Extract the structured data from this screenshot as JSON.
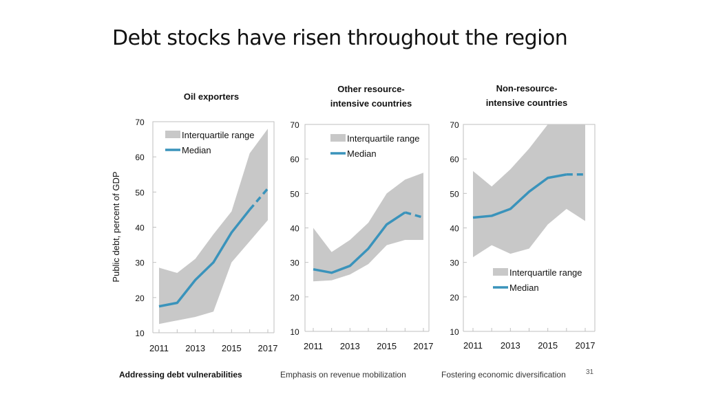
{
  "slide": {
    "title": "Debt stocks have risen throughout the region",
    "page_number": "31"
  },
  "footer": {
    "items": [
      {
        "label": "Addressing debt vulnerabilities",
        "active": true
      },
      {
        "label": "Emphasis on revenue mobilization",
        "active": false
      },
      {
        "label": "Fostering economic diversification",
        "active": false
      }
    ]
  },
  "colors": {
    "median": "#3a93bb",
    "band": "#c8c8c8",
    "frame": "#bfbfbf"
  },
  "chart_data": [
    {
      "type": "area",
      "title": "Oil exporters",
      "ylabel": "Public debt, percent of GDP",
      "xlabel": "",
      "ylim": [
        10,
        70
      ],
      "yticks": [
        10,
        20,
        30,
        40,
        50,
        60,
        70
      ],
      "x": [
        2011,
        2012,
        2013,
        2014,
        2015,
        2016,
        2017
      ],
      "xtick_labels": [
        "2011",
        "2013",
        "2015",
        "2017"
      ],
      "xtick_values": [
        2011,
        2013,
        2015,
        2017
      ],
      "legend": {
        "position": "top-left",
        "band_label": "Interquartile range",
        "median_label": "Median"
      },
      "series": [
        {
          "name": "Interquartile range",
          "kind": "band",
          "low": [
            12.5,
            13.5,
            14.5,
            16,
            30,
            36,
            42
          ],
          "high": [
            28.5,
            27,
            31,
            38,
            44.5,
            61,
            68
          ]
        },
        {
          "name": "Median",
          "kind": "line",
          "values": [
            17.5,
            18.5,
            25,
            30,
            38.5,
            45,
            51
          ],
          "projected_from": 2016
        }
      ]
    },
    {
      "type": "area",
      "title": "Other resource-intensive countries",
      "ylim": [
        10,
        70
      ],
      "yticks": [
        10,
        20,
        30,
        40,
        50,
        60,
        70
      ],
      "x": [
        2011,
        2012,
        2013,
        2014,
        2015,
        2016,
        2017
      ],
      "xtick_labels": [
        "2011",
        "2013",
        "2015",
        "2017"
      ],
      "xtick_values": [
        2011,
        2013,
        2015,
        2017
      ],
      "legend": {
        "position": "top-left",
        "band_label": "Interquartile range",
        "median_label": "Median"
      },
      "series": [
        {
          "name": "Interquartile range",
          "kind": "band",
          "low": [
            24.5,
            24.8,
            26.5,
            29.5,
            35,
            36.5,
            36.5
          ],
          "high": [
            40,
            33,
            36.5,
            41.5,
            50,
            54,
            56
          ]
        },
        {
          "name": "Median",
          "kind": "line",
          "values": [
            28,
            27,
            29,
            34,
            41,
            44.5,
            43
          ],
          "projected_from": 2016
        }
      ]
    },
    {
      "type": "area",
      "title": "Non-resource-intensive countries",
      "ylim": [
        10,
        70
      ],
      "yticks": [
        10,
        20,
        30,
        40,
        50,
        60,
        70
      ],
      "x": [
        2011,
        2012,
        2013,
        2014,
        2015,
        2016,
        2017
      ],
      "xtick_labels": [
        "2011",
        "2013",
        "2015",
        "2017"
      ],
      "xtick_values": [
        2011,
        2013,
        2015,
        2017
      ],
      "legend": {
        "position": "bottom-right",
        "band_label": "Interquartile range",
        "median_label": "Median"
      },
      "series": [
        {
          "name": "Interquartile range",
          "kind": "band",
          "low": [
            31.5,
            35,
            32.5,
            34,
            41,
            45.5,
            42
          ],
          "high": [
            56.5,
            52,
            57,
            63,
            70,
            70,
            70
          ]
        },
        {
          "name": "Median",
          "kind": "line",
          "values": [
            43,
            43.5,
            45.5,
            50.5,
            54.5,
            55.5,
            55.5
          ],
          "projected_from": 2016
        }
      ]
    }
  ]
}
